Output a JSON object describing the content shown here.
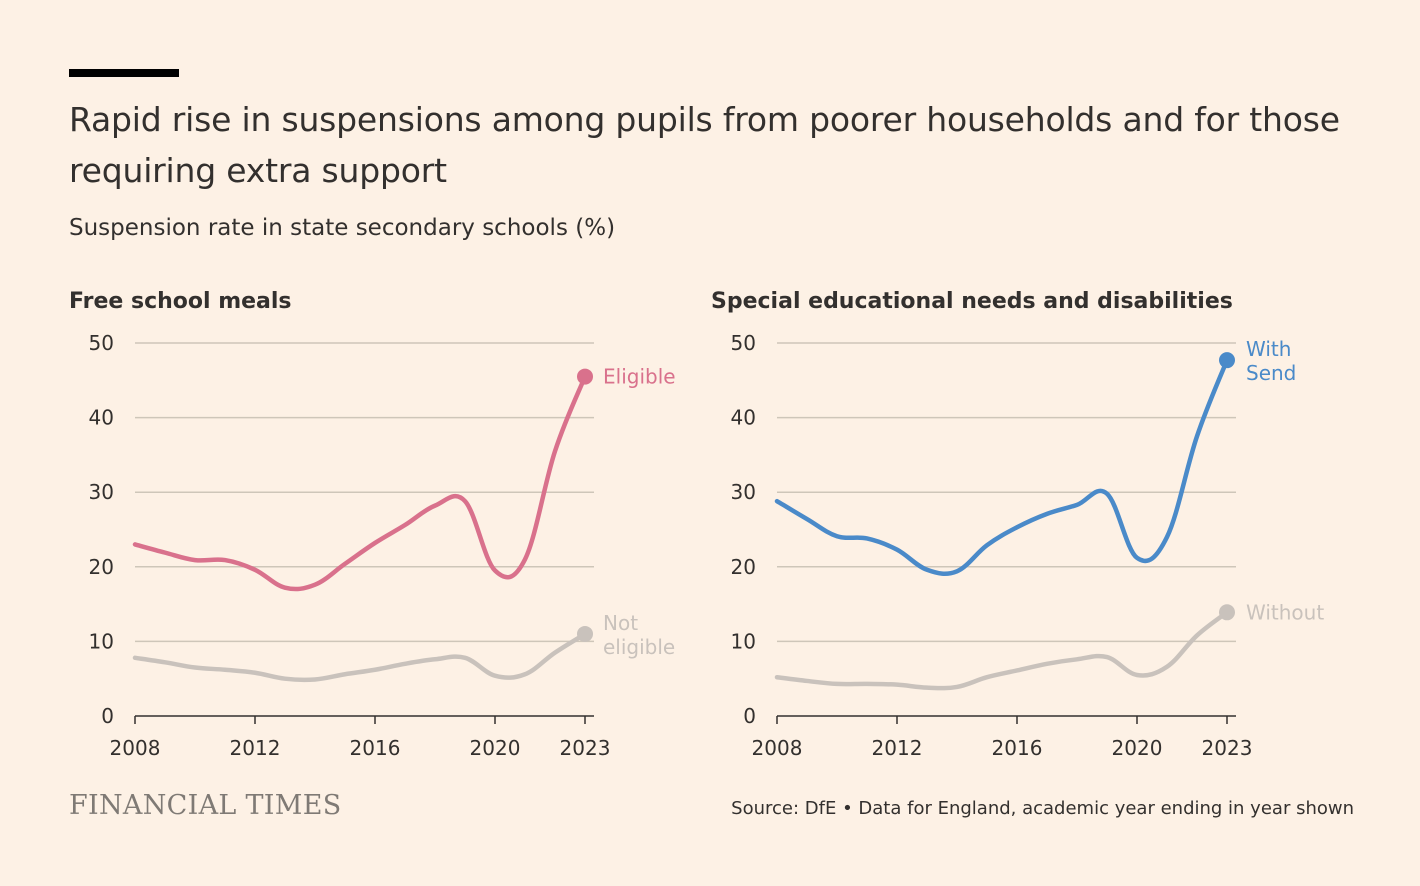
{
  "title": "Rapid rise in suspensions among pupils from poorer households and for those requiring extra support",
  "subtitle": "Suspension rate in state secondary schools (%)",
  "source": "Source: DfE • Data for England, academic year ending in year shown",
  "logo": "FINANCIAL TIMES",
  "colors": {
    "background": "#fdf1e5",
    "pink": "#d9718c",
    "blue": "#4a8ac9",
    "grey": "#c9c2bc"
  },
  "chart_data": [
    {
      "type": "line",
      "title": "Free school meals",
      "xlabel": "",
      "ylabel": "",
      "xlim": [
        2008,
        2023
      ],
      "ylim": [
        0,
        50
      ],
      "xticks": [
        2008,
        2012,
        2016,
        2020,
        2023
      ],
      "yticks": [
        0,
        10,
        20,
        30,
        40,
        50
      ],
      "grid": true,
      "x": [
        2008,
        2009,
        2010,
        2011,
        2012,
        2013,
        2014,
        2015,
        2016,
        2017,
        2018,
        2019,
        2020,
        2021,
        2022,
        2023
      ],
      "series": [
        {
          "name": "Eligible",
          "label_lines": [
            "Eligible"
          ],
          "color": "#d9718c",
          "values": [
            23.0,
            21.9,
            20.9,
            20.9,
            19.6,
            17.2,
            17.6,
            20.4,
            23.2,
            25.6,
            28.2,
            28.8,
            19.5,
            21.0,
            35.5,
            45.5
          ]
        },
        {
          "name": "Not eligible",
          "label_lines": [
            "Not",
            "eligible"
          ],
          "color": "#c9c2bc",
          "values": [
            7.8,
            7.2,
            6.5,
            6.2,
            5.8,
            5.0,
            4.9,
            5.6,
            6.2,
            7.0,
            7.6,
            7.8,
            5.4,
            5.6,
            8.5,
            11.0
          ]
        }
      ]
    },
    {
      "type": "line",
      "title": "Special educational needs and disabilities",
      "xlabel": "",
      "ylabel": "",
      "xlim": [
        2008,
        2023
      ],
      "ylim": [
        0,
        50
      ],
      "xticks": [
        2008,
        2012,
        2016,
        2020,
        2023
      ],
      "yticks": [
        0,
        10,
        20,
        30,
        40,
        50
      ],
      "grid": true,
      "x": [
        2008,
        2009,
        2010,
        2011,
        2012,
        2013,
        2014,
        2015,
        2016,
        2017,
        2018,
        2019,
        2020,
        2021,
        2022,
        2023
      ],
      "series": [
        {
          "name": "With Send",
          "label_lines": [
            "With",
            "Send"
          ],
          "color": "#4a8ac9",
          "values": [
            28.8,
            26.4,
            24.1,
            23.8,
            22.3,
            19.6,
            19.4,
            22.9,
            25.3,
            27.1,
            28.3,
            29.8,
            21.2,
            24.0,
            37.5,
            47.7
          ]
        },
        {
          "name": "Without",
          "label_lines": [
            "Without"
          ],
          "color": "#c9c2bc",
          "values": [
            5.2,
            4.7,
            4.3,
            4.3,
            4.2,
            3.8,
            3.9,
            5.2,
            6.1,
            7.0,
            7.6,
            7.9,
            5.5,
            6.6,
            10.8,
            13.9
          ]
        }
      ]
    }
  ]
}
